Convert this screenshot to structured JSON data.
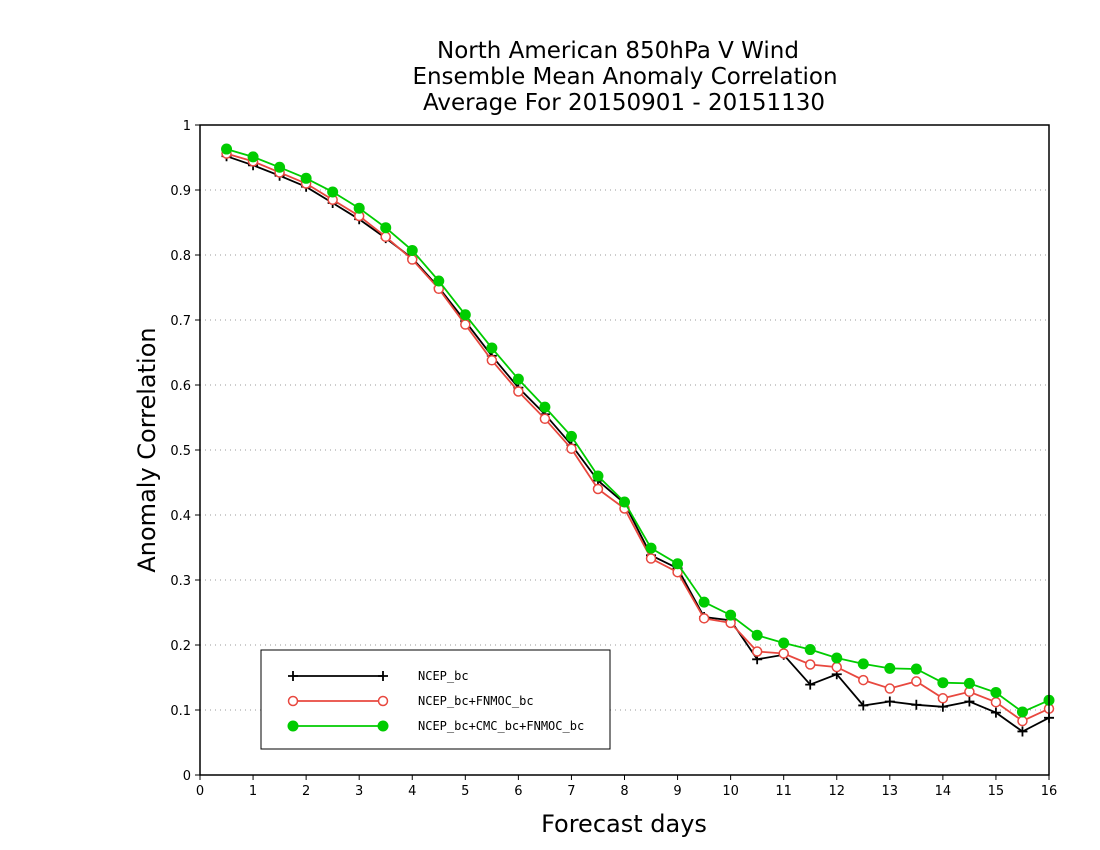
{
  "chart_data": {
    "type": "line",
    "title": [
      "North American 850hPa V Wind",
      "Ensemble Mean Anomaly Correlation",
      "Average For 20150901 - 20151130"
    ],
    "xlabel": "Forecast days",
    "ylabel": "Anomaly Correlation",
    "xlim": [
      0,
      16
    ],
    "ylim": [
      0,
      1
    ],
    "xticks": [
      0,
      1,
      2,
      3,
      4,
      5,
      6,
      7,
      8,
      9,
      10,
      11,
      12,
      13,
      14,
      15,
      16
    ],
    "yticks": [
      0,
      0.1,
      0.2,
      0.3,
      0.4,
      0.5,
      0.6,
      0.7,
      0.8,
      0.9,
      1
    ],
    "ytick_labels": [
      "0",
      "0.1",
      "0.2",
      "0.3",
      "0.4",
      "0.5",
      "0.6",
      "0.7",
      "0.8",
      "0.9",
      "1"
    ],
    "grid": "horizontal dotted",
    "legend_position": "bottom-left",
    "x": [
      0.5,
      1,
      1.5,
      2,
      2.5,
      3,
      3.5,
      4,
      4.5,
      5,
      5.5,
      6,
      6.5,
      7,
      7.5,
      8,
      8.5,
      9,
      9.5,
      10,
      10.5,
      11,
      11.5,
      12,
      12.5,
      13,
      13.5,
      14,
      14.5,
      15,
      15.5,
      16
    ],
    "series": [
      {
        "name": "NCEP_bc",
        "color": "#000000",
        "marker": "plus",
        "values": [
          0.952,
          0.938,
          0.922,
          0.905,
          0.88,
          0.855,
          0.826,
          0.795,
          0.75,
          0.698,
          0.645,
          0.596,
          0.555,
          0.508,
          0.453,
          0.418,
          0.338,
          0.318,
          0.243,
          0.238,
          0.178,
          0.185,
          0.139,
          0.155,
          0.107,
          0.113,
          0.108,
          0.105,
          0.113,
          0.096,
          0.067,
          0.088
        ]
      },
      {
        "name": "NCEP_bc+FNMOC_bc",
        "color": "#e8483f",
        "marker": "open-circle",
        "values": [
          0.956,
          0.944,
          0.927,
          0.91,
          0.885,
          0.86,
          0.828,
          0.793,
          0.748,
          0.693,
          0.638,
          0.59,
          0.548,
          0.502,
          0.44,
          0.41,
          0.333,
          0.312,
          0.241,
          0.234,
          0.19,
          0.187,
          0.17,
          0.166,
          0.146,
          0.133,
          0.144,
          0.118,
          0.128,
          0.112,
          0.083,
          0.102
        ]
      },
      {
        "name": "NCEP_bc+CMC_bc+FNMOC_bc",
        "color": "#00cc00",
        "marker": "filled-circle",
        "values": [
          0.963,
          0.951,
          0.935,
          0.918,
          0.897,
          0.872,
          0.842,
          0.807,
          0.76,
          0.708,
          0.657,
          0.609,
          0.566,
          0.521,
          0.46,
          0.42,
          0.349,
          0.325,
          0.266,
          0.246,
          0.215,
          0.203,
          0.193,
          0.18,
          0.171,
          0.164,
          0.163,
          0.142,
          0.141,
          0.127,
          0.097,
          0.115
        ]
      }
    ]
  }
}
